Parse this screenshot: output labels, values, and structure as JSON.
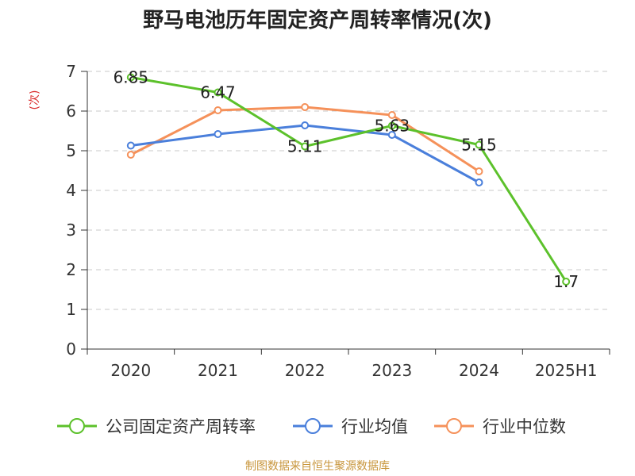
{
  "chart_data": {
    "type": "line",
    "title": "野马电池历年固定资产周转率情况(次)",
    "xlabel": "",
    "ylabel": "(次)",
    "categories": [
      "2020",
      "2021",
      "2022",
      "2023",
      "2024",
      "2025H1"
    ],
    "ylim": [
      0,
      7
    ],
    "yticks": [
      0,
      1,
      2,
      3,
      4,
      5,
      6,
      7
    ],
    "grid": true,
    "legend_position": "bottom",
    "series": [
      {
        "name": "公司固定资产周转率",
        "color": "#5cc12b",
        "values": [
          6.85,
          6.47,
          5.11,
          5.63,
          5.15,
          1.7
        ],
        "labels": [
          "6.85",
          "6.47",
          "5.11",
          "5.63",
          "5.15",
          "1.7"
        ]
      },
      {
        "name": "行业均值",
        "color": "#4a7fdb",
        "values": [
          5.13,
          5.42,
          5.64,
          5.4,
          4.2,
          null
        ]
      },
      {
        "name": "行业中位数",
        "color": "#f5915a",
        "values": [
          4.9,
          6.02,
          6.1,
          5.9,
          4.48,
          null
        ]
      }
    ]
  },
  "source": "制图数据来自恒生聚源数据库"
}
